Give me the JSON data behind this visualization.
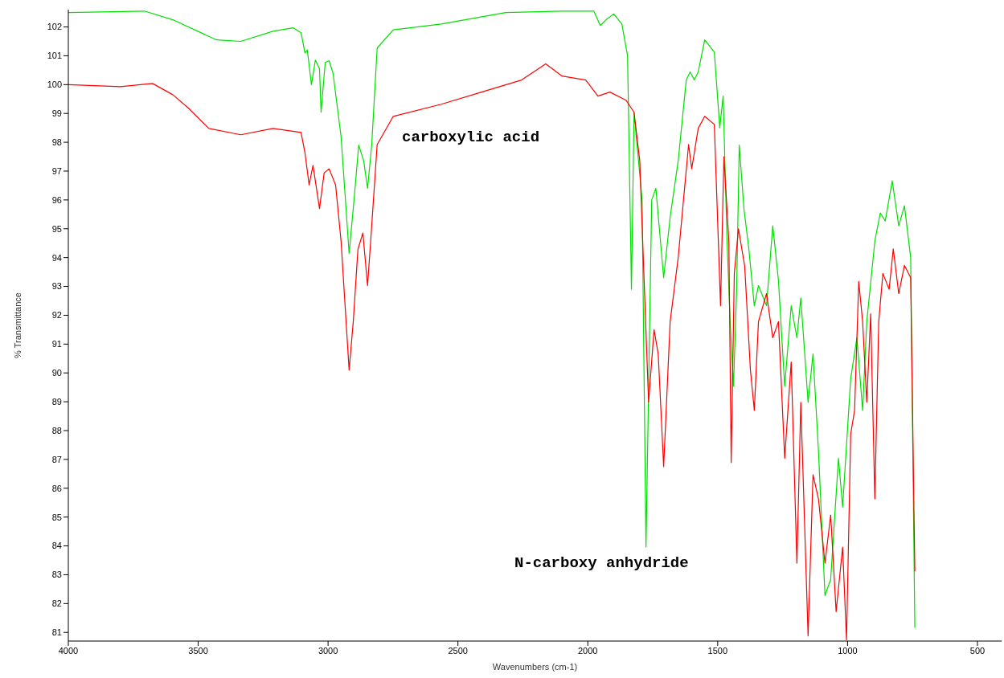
{
  "chart_data": {
    "type": "line",
    "xlabel": "Wavenumbers (cm-1)",
    "ylabel": "% Transmittance",
    "xlim": [
      4000,
      407
    ],
    "xticks": [
      4000,
      3500,
      3000,
      2500,
      2000,
      1500,
      1000,
      500
    ],
    "ylim": [
      80.7,
      102.6
    ],
    "yticks": [
      81,
      82,
      83,
      84,
      85,
      86,
      87,
      88,
      89,
      90,
      91,
      92,
      93,
      94,
      95,
      96,
      97,
      98,
      99,
      100,
      101,
      102
    ],
    "grid": false,
    "legend": false,
    "marker": "none",
    "line_style": "solid",
    "annotations": [
      "carboxylic acid",
      "N-carboxy anhydride"
    ],
    "series": [
      {
        "color": "#00e000",
        "x": [
          4000,
          3707,
          3598,
          3429,
          3336,
          3212,
          3135,
          3104,
          3089,
          3080,
          3064,
          3049,
          3033,
          3027,
          3011,
          2996,
          2981,
          2950,
          2919,
          2903,
          2882,
          2863,
          2848,
          2832,
          2811,
          2749,
          2564,
          2316,
          2100,
          1977,
          1952,
          1930,
          1900,
          1869,
          1847,
          1832,
          1822,
          1791,
          1776,
          1754,
          1738,
          1708,
          1683,
          1652,
          1621,
          1606,
          1590,
          1575,
          1550,
          1513,
          1492,
          1479,
          1464,
          1452,
          1439,
          1427,
          1417,
          1399,
          1380,
          1359,
          1343,
          1312,
          1288,
          1266,
          1242,
          1217,
          1195,
          1180,
          1152,
          1133,
          1112,
          1087,
          1065,
          1035,
          1019,
          988,
          964,
          942,
          926,
          895,
          874,
          855,
          828,
          803,
          781,
          757,
          741
        ],
        "values": [
          102.5,
          102.55,
          102.25,
          101.55,
          101.5,
          101.85,
          101.97,
          101.8,
          101.1,
          101.2,
          100.0,
          100.85,
          100.55,
          99.04,
          100.77,
          100.83,
          100.4,
          98.2,
          94.15,
          95.7,
          97.9,
          97.36,
          96.4,
          97.9,
          101.27,
          101.9,
          102.1,
          102.5,
          102.55,
          102.55,
          102.05,
          102.25,
          102.45,
          102.1,
          101.0,
          92.9,
          99.04,
          96.0,
          83.96,
          96.0,
          96.4,
          93.3,
          95.4,
          97.36,
          100.16,
          100.44,
          100.16,
          100.44,
          101.55,
          101.13,
          98.5,
          99.6,
          94.57,
          91.78,
          89.54,
          92.9,
          97.9,
          95.7,
          94.3,
          92.33,
          93.03,
          92.33,
          95.1,
          93.2,
          89.54,
          92.33,
          91.22,
          92.6,
          88.98,
          90.66,
          87.3,
          82.28,
          82.84,
          87.04,
          85.35,
          89.8,
          91.22,
          88.7,
          91.78,
          94.57,
          95.55,
          95.27,
          96.66,
          95.1,
          95.8,
          94.0,
          81.16
        ]
      },
      {
        "color": "#ff0000",
        "x": [
          4000,
          3799,
          3676,
          3598,
          3537,
          3459,
          3336,
          3212,
          3104,
          3089,
          3073,
          3058,
          3033,
          3015,
          2996,
          2971,
          2950,
          2919,
          2903,
          2885,
          2866,
          2848,
          2835,
          2811,
          2749,
          2564,
          2409,
          2255,
          2162,
          2100,
          2008,
          1961,
          1915,
          1853,
          1822,
          1800,
          1782,
          1766,
          1745,
          1729,
          1708,
          1683,
          1652,
          1612,
          1600,
          1575,
          1550,
          1513,
          1489,
          1476,
          1457,
          1448,
          1436,
          1420,
          1396,
          1374,
          1359,
          1343,
          1312,
          1288,
          1266,
          1242,
          1217,
          1195,
          1180,
          1152,
          1133,
          1112,
          1087,
          1065,
          1044,
          1019,
          1004,
          988,
          973,
          957,
          942,
          926,
          911,
          895,
          880,
          864,
          840,
          824,
          803,
          781,
          757,
          741
        ],
        "values": [
          100.0,
          99.93,
          100.04,
          99.65,
          99.18,
          98.48,
          98.26,
          98.48,
          98.34,
          97.64,
          96.52,
          97.2,
          95.7,
          96.94,
          97.08,
          96.52,
          94.57,
          90.1,
          91.78,
          94.29,
          94.85,
          93.03,
          94.7,
          97.92,
          98.9,
          99.32,
          99.74,
          100.16,
          100.72,
          100.3,
          100.16,
          99.6,
          99.74,
          99.46,
          99.04,
          97.36,
          92.9,
          88.98,
          91.5,
          90.66,
          86.75,
          91.78,
          94.0,
          97.92,
          97.08,
          98.48,
          98.9,
          98.62,
          92.33,
          97.5,
          94.57,
          86.89,
          93.45,
          95.0,
          93.7,
          90.1,
          88.7,
          91.78,
          92.75,
          91.22,
          91.78,
          87.04,
          90.38,
          83.4,
          88.98,
          80.88,
          86.47,
          85.63,
          83.4,
          85.07,
          81.72,
          83.96,
          80.74,
          87.87,
          88.7,
          93.17,
          91.78,
          88.98,
          92.05,
          85.63,
          91.78,
          93.45,
          92.9,
          94.3,
          92.75,
          93.73,
          93.3,
          83.12
        ]
      }
    ]
  }
}
